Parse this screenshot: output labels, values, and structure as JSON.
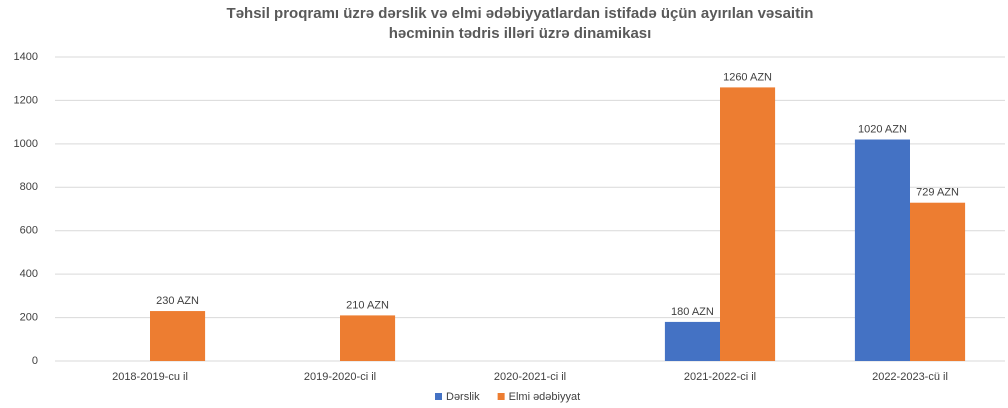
{
  "chart_data": {
    "type": "bar",
    "title": [
      "Təhsil proqramı üzrə dərslik və elmi ədəbiyyatlardan istifadə üçün ayırılan vəsaitin",
      "həcminin tədris illəri üzrə dinamikası"
    ],
    "categories": [
      "2018-2019-cu il",
      "2019-2020-ci il",
      "2020-2021-ci il",
      "2021-2022-ci il",
      "2022-2023-cü il"
    ],
    "series": [
      {
        "name": "Dərslik",
        "color": "#4472c4",
        "values": [
          null,
          null,
          null,
          180,
          1020
        ],
        "value_labels": [
          null,
          null,
          null,
          "180 AZN",
          "1020 AZN"
        ]
      },
      {
        "name": "Elmi ədəbiyyat",
        "color": "#ed7d31",
        "values": [
          230,
          210,
          null,
          1260,
          729
        ],
        "value_labels": [
          "230 AZN",
          "210 AZN",
          null,
          "1260 AZN",
          "729 AZN"
        ]
      }
    ],
    "ylim": [
      0,
      1400
    ],
    "yticks": [
      0,
      200,
      400,
      600,
      800,
      1000,
      1200,
      1400
    ],
    "grid": true,
    "legend": "bottom"
  }
}
